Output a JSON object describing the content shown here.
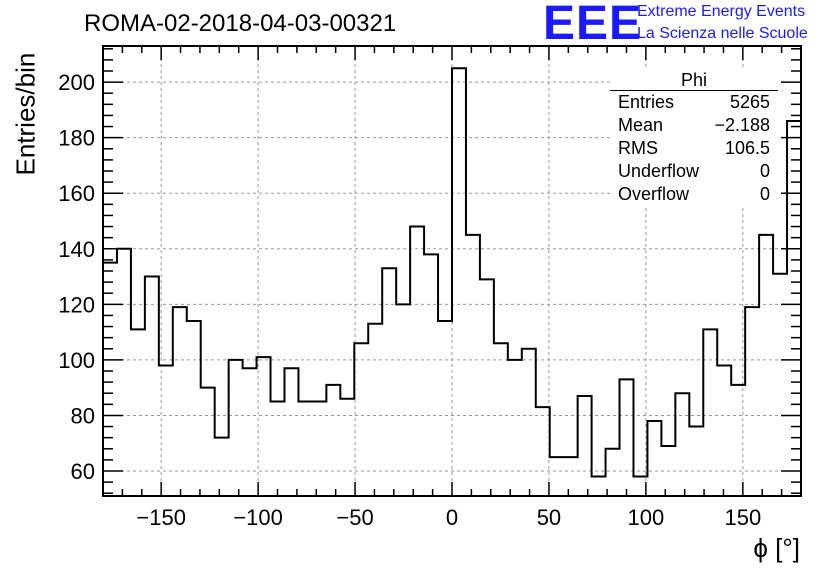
{
  "title": "ROMA-02-2018-04-03-00321",
  "logo": {
    "text": "EEE",
    "line1": "Extreme Energy Events",
    "line2": "La Scienza nelle Scuole",
    "color": "#1a1aff"
  },
  "stats": {
    "title": "Phi",
    "rows": [
      {
        "label": "Entries",
        "value": "5265"
      },
      {
        "label": "Mean",
        "value": "−2.188"
      },
      {
        "label": "RMS",
        "value": "106.5"
      },
      {
        "label": "Underflow",
        "value": "0"
      },
      {
        "label": "Overflow",
        "value": "0"
      }
    ]
  },
  "chart_data": {
    "type": "histogram",
    "title": "ROMA-02-2018-04-03-00321",
    "xlabel": "ϕ [°]",
    "ylabel": "Entries/bin",
    "xlim": [
      -180,
      180
    ],
    "ylim": [
      51,
      213
    ],
    "bin_width": 7.2,
    "bin_edges_start": -180,
    "values": [
      135,
      140,
      111,
      130,
      98,
      119,
      114,
      90,
      72,
      100,
      97,
      101,
      85,
      97,
      85,
      85,
      91,
      86,
      106,
      113,
      133,
      120,
      148,
      138,
      114,
      205,
      145,
      129,
      106,
      100,
      104,
      83,
      65,
      65,
      87,
      58,
      68,
      93,
      58,
      78,
      69,
      88,
      76,
      111,
      98,
      91,
      119,
      145,
      131,
      186
    ],
    "x_ticks": [
      -150,
      -100,
      -50,
      0,
      50,
      100,
      150
    ],
    "y_ticks": [
      60,
      80,
      100,
      120,
      140,
      160,
      180,
      200
    ],
    "grid": true,
    "line_color": "#000000"
  }
}
